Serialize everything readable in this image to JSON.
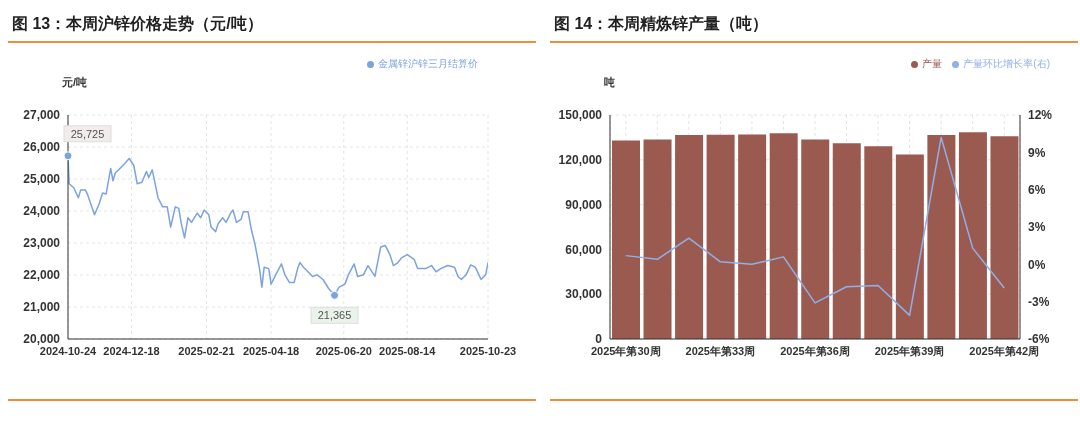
{
  "chart_data": [
    {
      "type": "line",
      "title": "图 13：本周沪锌价格走势（元/吨）",
      "ylabel": "元/吨",
      "legend": "top right",
      "grid": true,
      "marker": "none",
      "x": [
        "2024-10-24",
        "2024-10-25",
        "2024-10-29",
        "2024-11-02",
        "2024-11-04",
        "2024-11-08",
        "2024-11-10",
        "2024-11-16",
        "2024-11-20",
        "2024-11-23",
        "2024-11-26",
        "2024-11-30",
        "2024-12-02",
        "2024-12-04",
        "2024-12-08",
        "2024-12-12",
        "2024-12-16",
        "2024-12-20",
        "2024-12-23",
        "2024-12-27",
        "2024-12-31",
        "2025-01-02",
        "2025-01-05",
        "2025-01-10",
        "2025-01-14",
        "2025-01-18",
        "2025-01-21",
        "2025-01-25",
        "2025-01-28",
        "2025-01-30",
        "2025-02-02",
        "2025-02-05",
        "2025-02-08",
        "2025-02-13",
        "2025-02-16",
        "2025-02-19",
        "2025-02-23",
        "2025-02-25",
        "2025-03-01",
        "2025-03-03",
        "2025-03-07",
        "2025-03-10",
        "2025-03-14",
        "2025-03-16",
        "2025-03-19",
        "2025-03-23",
        "2025-03-25",
        "2025-03-29",
        "2025-04-01",
        "2025-04-04",
        "2025-04-08",
        "2025-04-10",
        "2025-04-12",
        "2025-04-16",
        "2025-04-18",
        "2025-04-22",
        "2025-04-27",
        "2025-04-30",
        "2025-05-04",
        "2025-05-08",
        "2025-05-11",
        "2025-05-13",
        "2025-05-16",
        "2025-05-20",
        "2025-05-24",
        "2025-05-28",
        "2025-06-02",
        "2025-06-07",
        "2025-06-12",
        "2025-06-16",
        "2025-06-21",
        "2025-06-24",
        "2025-06-29",
        "2025-07-02",
        "2025-07-07",
        "2025-07-11",
        "2025-07-17",
        "2025-07-22",
        "2025-07-26",
        "2025-07-30",
        "2025-08-02",
        "2025-08-06",
        "2025-08-09",
        "2025-08-14",
        "2025-08-20",
        "2025-08-23",
        "2025-08-30",
        "2025-09-04",
        "2025-09-08",
        "2025-09-12",
        "2025-09-18",
        "2025-09-24",
        "2025-09-27",
        "2025-09-30",
        "2025-10-04",
        "2025-10-08",
        "2025-10-12",
        "2025-10-17",
        "2025-10-21",
        "2025-10-23"
      ],
      "series": [
        {
          "name": "金属锌沪锌三月结算价",
          "color": "#7ba3de",
          "values": [
            25725,
            24850,
            24725,
            24415,
            24660,
            24660,
            24510,
            23885,
            24225,
            24560,
            24530,
            25330,
            24945,
            25190,
            25330,
            25475,
            25640,
            25430,
            24850,
            24900,
            25235,
            25045,
            25285,
            24415,
            24130,
            24130,
            23500,
            24130,
            24080,
            23645,
            23160,
            23790,
            23645,
            23935,
            23790,
            24030,
            23885,
            23500,
            23355,
            23595,
            23790,
            23645,
            23935,
            24030,
            23645,
            23740,
            23980,
            23980,
            23405,
            22970,
            22200,
            21620,
            22245,
            22200,
            21715,
            22005,
            22345,
            22005,
            21765,
            21765,
            22200,
            22390,
            22245,
            22100,
            21955,
            22005,
            21860,
            21570,
            21365,
            21620,
            21715,
            22005,
            22345,
            21955,
            22005,
            22295,
            21955,
            22875,
            22920,
            22635,
            22295,
            22390,
            22535,
            22635,
            22490,
            22200,
            22200,
            22295,
            22100,
            22200,
            22295,
            22245,
            21955,
            21860,
            22005,
            22315,
            22245,
            21860,
            22005,
            22390
          ]
        }
      ],
      "xlim": [
        "2024-10-24",
        "2025-10-23"
      ],
      "xticks": [
        "2024-10-24",
        "2024-12-18",
        "2025-02-21",
        "2025-04-18",
        "2025-06-20",
        "2025-08-14",
        "2025-10-23"
      ],
      "ylim": [
        20000,
        27000
      ],
      "yticks": [
        {
          "value": 20000,
          "label": "20,000"
        },
        {
          "value": 21000,
          "label": "21,000"
        },
        {
          "value": 22000,
          "label": "22,000"
        },
        {
          "value": 23000,
          "label": "23,000"
        },
        {
          "value": 24000,
          "label": "24,000"
        },
        {
          "value": 25000,
          "label": "25,000"
        },
        {
          "value": 26000,
          "label": "26,000"
        },
        {
          "value": 27000,
          "label": "27,000"
        }
      ],
      "annotations": [
        {
          "text": "25,725",
          "x": "2024-10-24",
          "y": 25725
        },
        {
          "text": "21,365",
          "x": "2025-06-12",
          "y": 21365
        }
      ]
    },
    {
      "type": "bar",
      "title": "图 14：本周精炼锌产量（吨）",
      "ylabel": "吨",
      "legend": "top right",
      "grid": true,
      "categories": [
        "2025年第30周",
        null,
        null,
        "2025年第33周",
        null,
        null,
        "2025年第36周",
        null,
        null,
        "2025年第39周",
        null,
        null,
        "2025年第42周"
      ],
      "series": [
        {
          "name": "产量",
          "color": "#9b5a4f",
          "values": [
            133000,
            133600,
            136600,
            136800,
            137000,
            137800,
            133600,
            131000,
            129000,
            123600,
            136600,
            138400,
            135800
          ]
        },
        {
          "name": "产量环比增长率(右)",
          "type": "line",
          "axis": "y2",
          "marker": "none",
          "color": "#8fb0e8",
          "values": [
            0.7,
            0.4,
            2.1,
            0.2,
            0.0,
            0.6,
            -3.1,
            -1.8,
            -1.7,
            -4.1,
            10.2,
            1.3,
            -1.9
          ]
        }
      ],
      "ylim": [
        0,
        150000
      ],
      "yticks": [
        0,
        {
          "value": 30000,
          "label": "30,000"
        },
        {
          "value": 60000,
          "label": "60,000"
        },
        {
          "value": 90000,
          "label": "90,000"
        },
        {
          "value": 120000,
          "label": "120,000"
        },
        {
          "value": 150000,
          "label": "150,000"
        }
      ],
      "y2lim": [
        -6,
        12
      ],
      "y2ticks": [
        {
          "value": -6,
          "label": "-6%"
        },
        {
          "value": -3,
          "label": "-3%"
        },
        {
          "value": 0,
          "label": "0%"
        },
        {
          "value": 3,
          "label": "3%"
        },
        {
          "value": 6,
          "label": "6%"
        },
        {
          "value": 9,
          "label": "9%"
        },
        {
          "value": 12,
          "label": "12%"
        }
      ]
    }
  ]
}
